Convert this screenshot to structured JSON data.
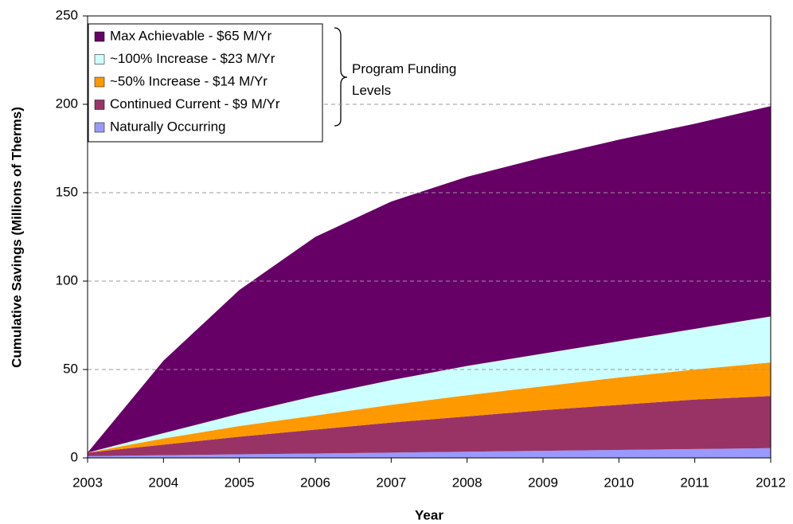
{
  "chart_data": {
    "type": "stacked_area",
    "x_label": "Year",
    "y_label": "Cumulative Savings (Millions of Therms)",
    "annotation": "Program Funding Levels",
    "x": [
      2003,
      2004,
      2005,
      2006,
      2007,
      2008,
      2009,
      2010,
      2011,
      2012
    ],
    "xlim": [
      2003,
      2012
    ],
    "xticks": [
      2003,
      2004,
      2005,
      2006,
      2007,
      2008,
      2009,
      2010,
      2011,
      2012
    ],
    "ylim": [
      0,
      250
    ],
    "yticks": [
      0,
      50,
      100,
      150,
      200,
      250
    ],
    "grid": true,
    "legend": "upper left",
    "series": [
      {
        "name": "Naturally Occurring",
        "color": "#9999ff",
        "values": [
          1,
          1.5,
          2,
          2.5,
          3,
          3.5,
          4,
          4.5,
          5,
          5.5
        ]
      },
      {
        "name": "Continued Current - $9 M/Yr",
        "color": "#993366",
        "values": [
          2,
          6,
          10,
          13.5,
          17,
          20,
          23,
          25.5,
          28,
          29.5
        ]
      },
      {
        "name": "~50% Increase - $14 M/Yr",
        "color": "#ff9900",
        "values": [
          0,
          3.5,
          6,
          8,
          10,
          12,
          13.5,
          15.5,
          17,
          19
        ]
      },
      {
        "name": "~100% Increase - $23 M/Yr",
        "color": "#ccffff",
        "values": [
          0,
          3,
          7,
          11,
          14,
          16.5,
          18.5,
          20.5,
          23,
          26
        ]
      },
      {
        "name": "Max Achievable - $65 M/Yr",
        "color": "#660066",
        "values": [
          0,
          41,
          70,
          90,
          101,
          107,
          111,
          114,
          116,
          119
        ]
      }
    ]
  }
}
